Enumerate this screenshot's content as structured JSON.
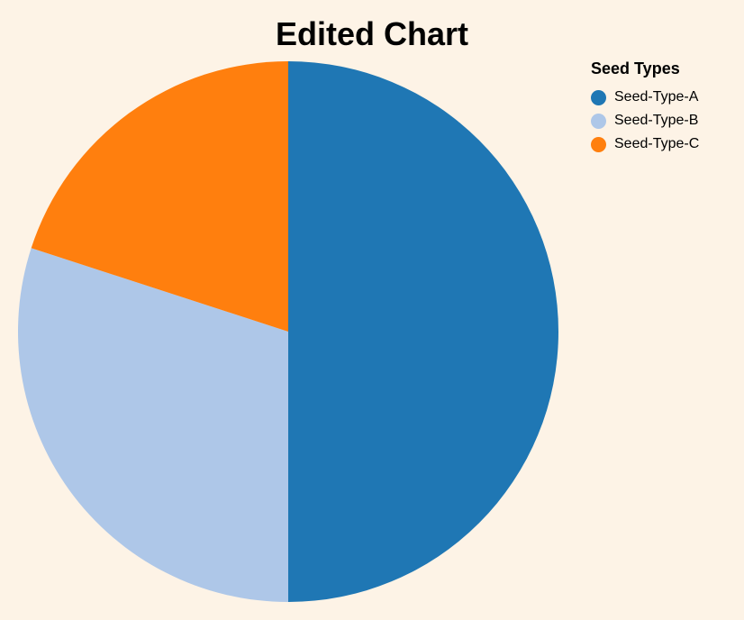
{
  "chart_data": {
    "type": "pie",
    "title": "Edited Chart",
    "legend_title": "Seed Types",
    "legend_position": "top-right",
    "categories": [
      "Seed-Type-A",
      "Seed-Type-B",
      "Seed-Type-C"
    ],
    "values": [
      50,
      30,
      20
    ],
    "colors": [
      "#1f77b4",
      "#aec7e8",
      "#ff7f0e"
    ]
  }
}
